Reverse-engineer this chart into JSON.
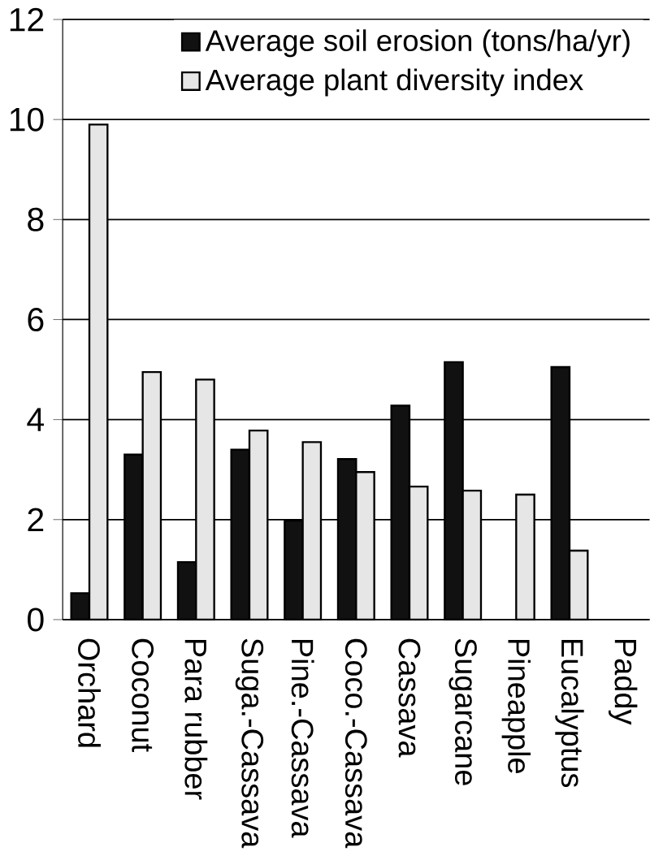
{
  "chart_data": {
    "type": "bar",
    "categories": [
      "Orchard",
      "Coconut",
      "Para rubber",
      "Suga.-Cassava",
      "Pine.-Cassava",
      "Coco.-Cassava",
      "Cassava",
      "Sugarcane",
      "Pineapple",
      "Eucalyptus",
      "Paddy"
    ],
    "series": [
      {
        "name": "Average soil erosion (tons/ha/yr)",
        "color": "#111111",
        "values": [
          0.53,
          3.3,
          1.15,
          3.4,
          1.98,
          3.21,
          4.28,
          5.15,
          null,
          5.05,
          null
        ]
      },
      {
        "name": "Average plant diversity index",
        "color": "#e6e6e6",
        "values": [
          9.9,
          4.95,
          4.8,
          3.78,
          3.55,
          2.95,
          2.66,
          2.58,
          2.5,
          1.38,
          null
        ]
      }
    ],
    "ylim": [
      0,
      12
    ],
    "yticks": [
      0,
      2,
      4,
      6,
      8,
      10,
      12
    ],
    "grid": "y",
    "legend": "top right"
  }
}
